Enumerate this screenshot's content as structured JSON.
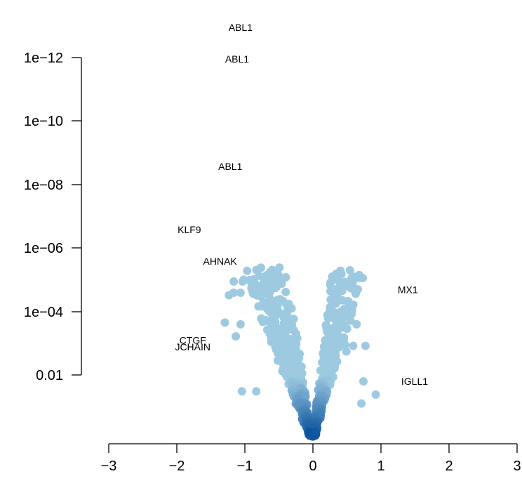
{
  "chart_data": {
    "type": "scatter",
    "title": "",
    "xlabel": "",
    "ylabel": "",
    "x_ticks": [
      "−3",
      "−2",
      "−1",
      "0",
      "1",
      "2",
      "3"
    ],
    "y_ticks": [
      "0.01",
      "1e−04",
      "1e−06",
      "1e−08",
      "1e−10",
      "1e−12"
    ],
    "xlim": [
      -3,
      3
    ],
    "y_scale": "log, reversed (p-value)",
    "point_color": "#9ecae1",
    "density_color_dark": "#08519c",
    "labels": [
      {
        "text": "ABL1",
        "x": -1.05,
        "y": 1e-13
      },
      {
        "text": "ABL1",
        "x": -1.1,
        "y": 1e-12
      },
      {
        "text": "ABL1",
        "x": -1.2,
        "y": 2.5e-09
      },
      {
        "text": "KLF9",
        "x": -1.8,
        "y": 2.5e-07
      },
      {
        "text": "AHNAK",
        "x": -1.35,
        "y": 2.5e-06
      },
      {
        "text": "MX1",
        "x": 1.4,
        "y": 2e-05
      },
      {
        "text": "CTGF",
        "x": -1.75,
        "y": 0.0008
      },
      {
        "text": "JCHAIN",
        "x": -1.75,
        "y": 0.0013
      },
      {
        "text": "IGLL1",
        "x": 1.5,
        "y": 0.016
      }
    ],
    "highlight_points": [
      {
        "x": -0.48,
        "y": 4e-06
      },
      {
        "x": -1.15,
        "y": 1.1e-05
      },
      {
        "x": -1.02,
        "y": 1.1e-05
      },
      {
        "x": -0.92,
        "y": 1e-05
      },
      {
        "x": -1.05,
        "y": 2.5e-05
      },
      {
        "x": -1.15,
        "y": 2.5e-05
      },
      {
        "x": -1.22,
        "y": 3e-05
      },
      {
        "x": -0.72,
        "y": 6e-05
      },
      {
        "x": -0.55,
        "y": 5e-05
      },
      {
        "x": -1.28,
        "y": 0.00022
      },
      {
        "x": -1.05,
        "y": 0.00025
      },
      {
        "x": -0.4,
        "y": 0.0002
      },
      {
        "x": -1.12,
        "y": 0.0006
      },
      {
        "x": 0.65,
        "y": 0.00025
      },
      {
        "x": 0.32,
        "y": 0.0011
      },
      {
        "x": 0.48,
        "y": 0.0011
      },
      {
        "x": 0.6,
        "y": 0.0012
      },
      {
        "x": 0.78,
        "y": 0.0012
      },
      {
        "x": 0.5,
        "y": 0.0018
      },
      {
        "x": 0.75,
        "y": 0.016
      },
      {
        "x": 0.93,
        "y": 0.042
      },
      {
        "x": -1.03,
        "y": 0.033
      },
      {
        "x": -0.82,
        "y": 0.033
      },
      {
        "x": 0.72,
        "y": 0.08
      }
    ]
  }
}
